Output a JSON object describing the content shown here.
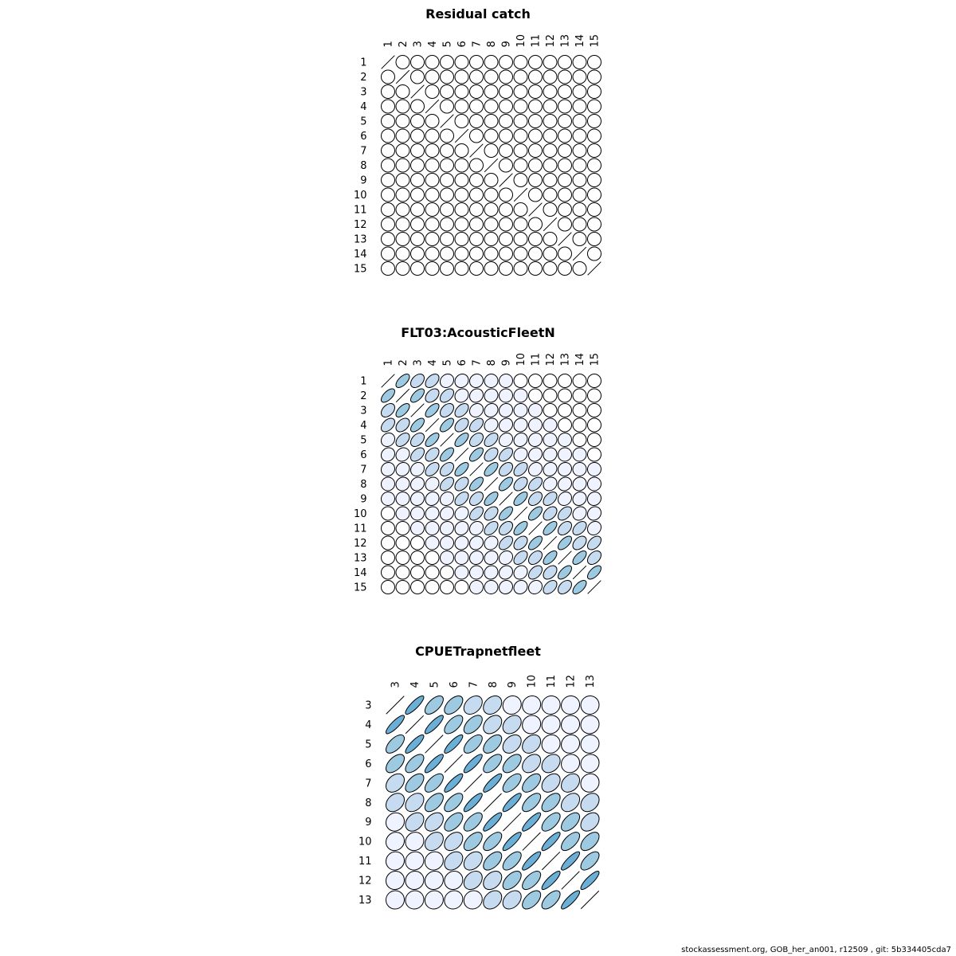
{
  "footer": "stockassessment.org, GOB_her_an001, r12509 , git: 5b334405cda7",
  "colors": {
    "stroke": "#000000",
    "fill_scale": [
      "#ffffff",
      "#eff3ff",
      "#c6dbef",
      "#9ecae1",
      "#6baed6",
      "#3182bd"
    ]
  },
  "chart_data": [
    {
      "type": "heatmap",
      "title": "Residual catch",
      "labels": [
        "1",
        "2",
        "3",
        "4",
        "5",
        "6",
        "7",
        "8",
        "9",
        "10",
        "11",
        "12",
        "13",
        "14",
        "15"
      ],
      "matrix": [
        [
          1,
          0,
          0,
          0,
          0,
          0,
          0,
          0,
          0,
          0,
          0,
          0,
          0,
          0,
          0
        ],
        [
          0,
          1,
          0,
          0,
          0,
          0,
          0,
          0,
          0,
          0,
          0,
          0,
          0,
          0,
          0
        ],
        [
          0,
          0,
          1,
          0,
          0,
          0,
          0,
          0,
          0,
          0,
          0,
          0,
          0,
          0,
          0
        ],
        [
          0,
          0,
          0,
          1,
          0,
          0,
          0,
          0,
          0,
          0,
          0,
          0,
          0,
          0,
          0
        ],
        [
          0,
          0,
          0,
          0,
          1,
          0,
          0,
          0,
          0,
          0,
          0,
          0,
          0,
          0,
          0
        ],
        [
          0,
          0,
          0,
          0,
          0,
          1,
          0,
          0,
          0,
          0,
          0,
          0,
          0,
          0,
          0
        ],
        [
          0,
          0,
          0,
          0,
          0,
          0,
          1,
          0,
          0,
          0,
          0,
          0,
          0,
          0,
          0
        ],
        [
          0,
          0,
          0,
          0,
          0,
          0,
          0,
          1,
          0,
          0,
          0,
          0,
          0,
          0,
          0
        ],
        [
          0,
          0,
          0,
          0,
          0,
          0,
          0,
          0,
          1,
          0,
          0,
          0,
          0,
          0,
          0
        ],
        [
          0,
          0,
          0,
          0,
          0,
          0,
          0,
          0,
          0,
          1,
          0,
          0,
          0,
          0,
          0
        ],
        [
          0,
          0,
          0,
          0,
          0,
          0,
          0,
          0,
          0,
          0,
          1,
          0,
          0,
          0,
          0
        ],
        [
          0,
          0,
          0,
          0,
          0,
          0,
          0,
          0,
          0,
          0,
          0,
          1,
          0,
          0,
          0
        ],
        [
          0,
          0,
          0,
          0,
          0,
          0,
          0,
          0,
          0,
          0,
          0,
          0,
          1,
          0,
          0
        ],
        [
          0,
          0,
          0,
          0,
          0,
          0,
          0,
          0,
          0,
          0,
          0,
          0,
          0,
          1,
          0
        ],
        [
          0,
          0,
          0,
          0,
          0,
          0,
          0,
          0,
          0,
          0,
          0,
          0,
          0,
          0,
          1
        ]
      ]
    },
    {
      "type": "heatmap",
      "title": "FLT03:AcousticFleetN",
      "labels": [
        "1",
        "2",
        "3",
        "4",
        "5",
        "6",
        "7",
        "8",
        "9",
        "10",
        "11",
        "12",
        "13",
        "14",
        "15"
      ],
      "matrix": [
        [
          1,
          0.62,
          0.4,
          0.45,
          0.15,
          0.12,
          0.08,
          0.02,
          0.02,
          0,
          0,
          0,
          0,
          0,
          0
        ],
        [
          0.62,
          1,
          0.62,
          0.4,
          0.45,
          0.15,
          0.12,
          0.08,
          0.02,
          0.02,
          0,
          0,
          0,
          0,
          0
        ],
        [
          0.4,
          0.62,
          1,
          0.62,
          0.4,
          0.45,
          0.15,
          0.12,
          0.08,
          0.02,
          0.02,
          0,
          0,
          0,
          0
        ],
        [
          0.45,
          0.4,
          0.62,
          1,
          0.62,
          0.4,
          0.45,
          0.15,
          0.12,
          0.08,
          0.02,
          0.02,
          0,
          0,
          0
        ],
        [
          0.15,
          0.45,
          0.4,
          0.62,
          1,
          0.62,
          0.4,
          0.45,
          0.15,
          0.12,
          0.08,
          0.02,
          0.02,
          0,
          0
        ],
        [
          0.12,
          0.15,
          0.45,
          0.4,
          0.62,
          1,
          0.62,
          0.4,
          0.45,
          0.15,
          0.12,
          0.08,
          0.02,
          0.02,
          0
        ],
        [
          0.08,
          0.12,
          0.15,
          0.45,
          0.4,
          0.62,
          1,
          0.62,
          0.4,
          0.45,
          0.15,
          0.12,
          0.08,
          0.02,
          0.02
        ],
        [
          0.02,
          0.08,
          0.12,
          0.15,
          0.45,
          0.4,
          0.62,
          1,
          0.62,
          0.4,
          0.45,
          0.15,
          0.12,
          0.08,
          0.02
        ],
        [
          0.02,
          0.02,
          0.08,
          0.12,
          0.15,
          0.45,
          0.4,
          0.62,
          1,
          0.62,
          0.4,
          0.45,
          0.15,
          0.12,
          0.08
        ],
        [
          0,
          0.02,
          0.02,
          0.08,
          0.12,
          0.15,
          0.45,
          0.4,
          0.62,
          1,
          0.62,
          0.4,
          0.45,
          0.15,
          0.12
        ],
        [
          0,
          0,
          0.02,
          0.02,
          0.08,
          0.12,
          0.15,
          0.45,
          0.4,
          0.62,
          1,
          0.62,
          0.4,
          0.45,
          0.15
        ],
        [
          0,
          0,
          0,
          0.02,
          0.02,
          0.08,
          0.12,
          0.15,
          0.45,
          0.4,
          0.62,
          1,
          0.62,
          0.4,
          0.45
        ],
        [
          0,
          0,
          0,
          0,
          0.02,
          0.02,
          0.08,
          0.12,
          0.15,
          0.45,
          0.4,
          0.62,
          1,
          0.62,
          0.4
        ],
        [
          0,
          0,
          0,
          0,
          0,
          0.02,
          0.02,
          0.08,
          0.12,
          0.15,
          0.45,
          0.4,
          0.62,
          1,
          0.62
        ],
        [
          0,
          0,
          0,
          0,
          0,
          0,
          0.02,
          0.02,
          0.08,
          0.12,
          0.15,
          0.45,
          0.4,
          0.62,
          1
        ]
      ]
    },
    {
      "type": "heatmap",
      "title": "CPUETrapnetfleet",
      "labels": [
        "3",
        "4",
        "5",
        "6",
        "7",
        "8",
        "9",
        "10",
        "11",
        "12",
        "13"
      ],
      "matrix": [
        [
          1,
          0.85,
          0.62,
          0.55,
          0.35,
          0.3,
          0.08,
          0.08,
          0.05,
          0.05,
          0.02
        ],
        [
          0.85,
          1,
          0.85,
          0.62,
          0.55,
          0.35,
          0.3,
          0.08,
          0.08,
          0.05,
          0.05
        ],
        [
          0.62,
          0.85,
          1,
          0.85,
          0.62,
          0.55,
          0.35,
          0.3,
          0.08,
          0.08,
          0.05
        ],
        [
          0.55,
          0.62,
          0.85,
          1,
          0.85,
          0.62,
          0.55,
          0.35,
          0.3,
          0.08,
          0.08
        ],
        [
          0.35,
          0.55,
          0.62,
          0.85,
          1,
          0.85,
          0.62,
          0.55,
          0.35,
          0.3,
          0.08
        ],
        [
          0.3,
          0.35,
          0.55,
          0.62,
          0.85,
          1,
          0.85,
          0.62,
          0.55,
          0.35,
          0.3
        ],
        [
          0.08,
          0.3,
          0.35,
          0.55,
          0.62,
          0.85,
          1,
          0.85,
          0.62,
          0.55,
          0.35
        ],
        [
          0.08,
          0.08,
          0.3,
          0.35,
          0.55,
          0.62,
          0.85,
          1,
          0.85,
          0.62,
          0.55
        ],
        [
          0.05,
          0.08,
          0.08,
          0.3,
          0.35,
          0.55,
          0.62,
          0.85,
          1,
          0.85,
          0.62
        ],
        [
          0.05,
          0.05,
          0.08,
          0.08,
          0.3,
          0.35,
          0.55,
          0.62,
          0.85,
          1,
          0.85
        ],
        [
          0.02,
          0.05,
          0.05,
          0.08,
          0.08,
          0.3,
          0.35,
          0.55,
          0.62,
          0.85,
          1
        ]
      ]
    }
  ]
}
